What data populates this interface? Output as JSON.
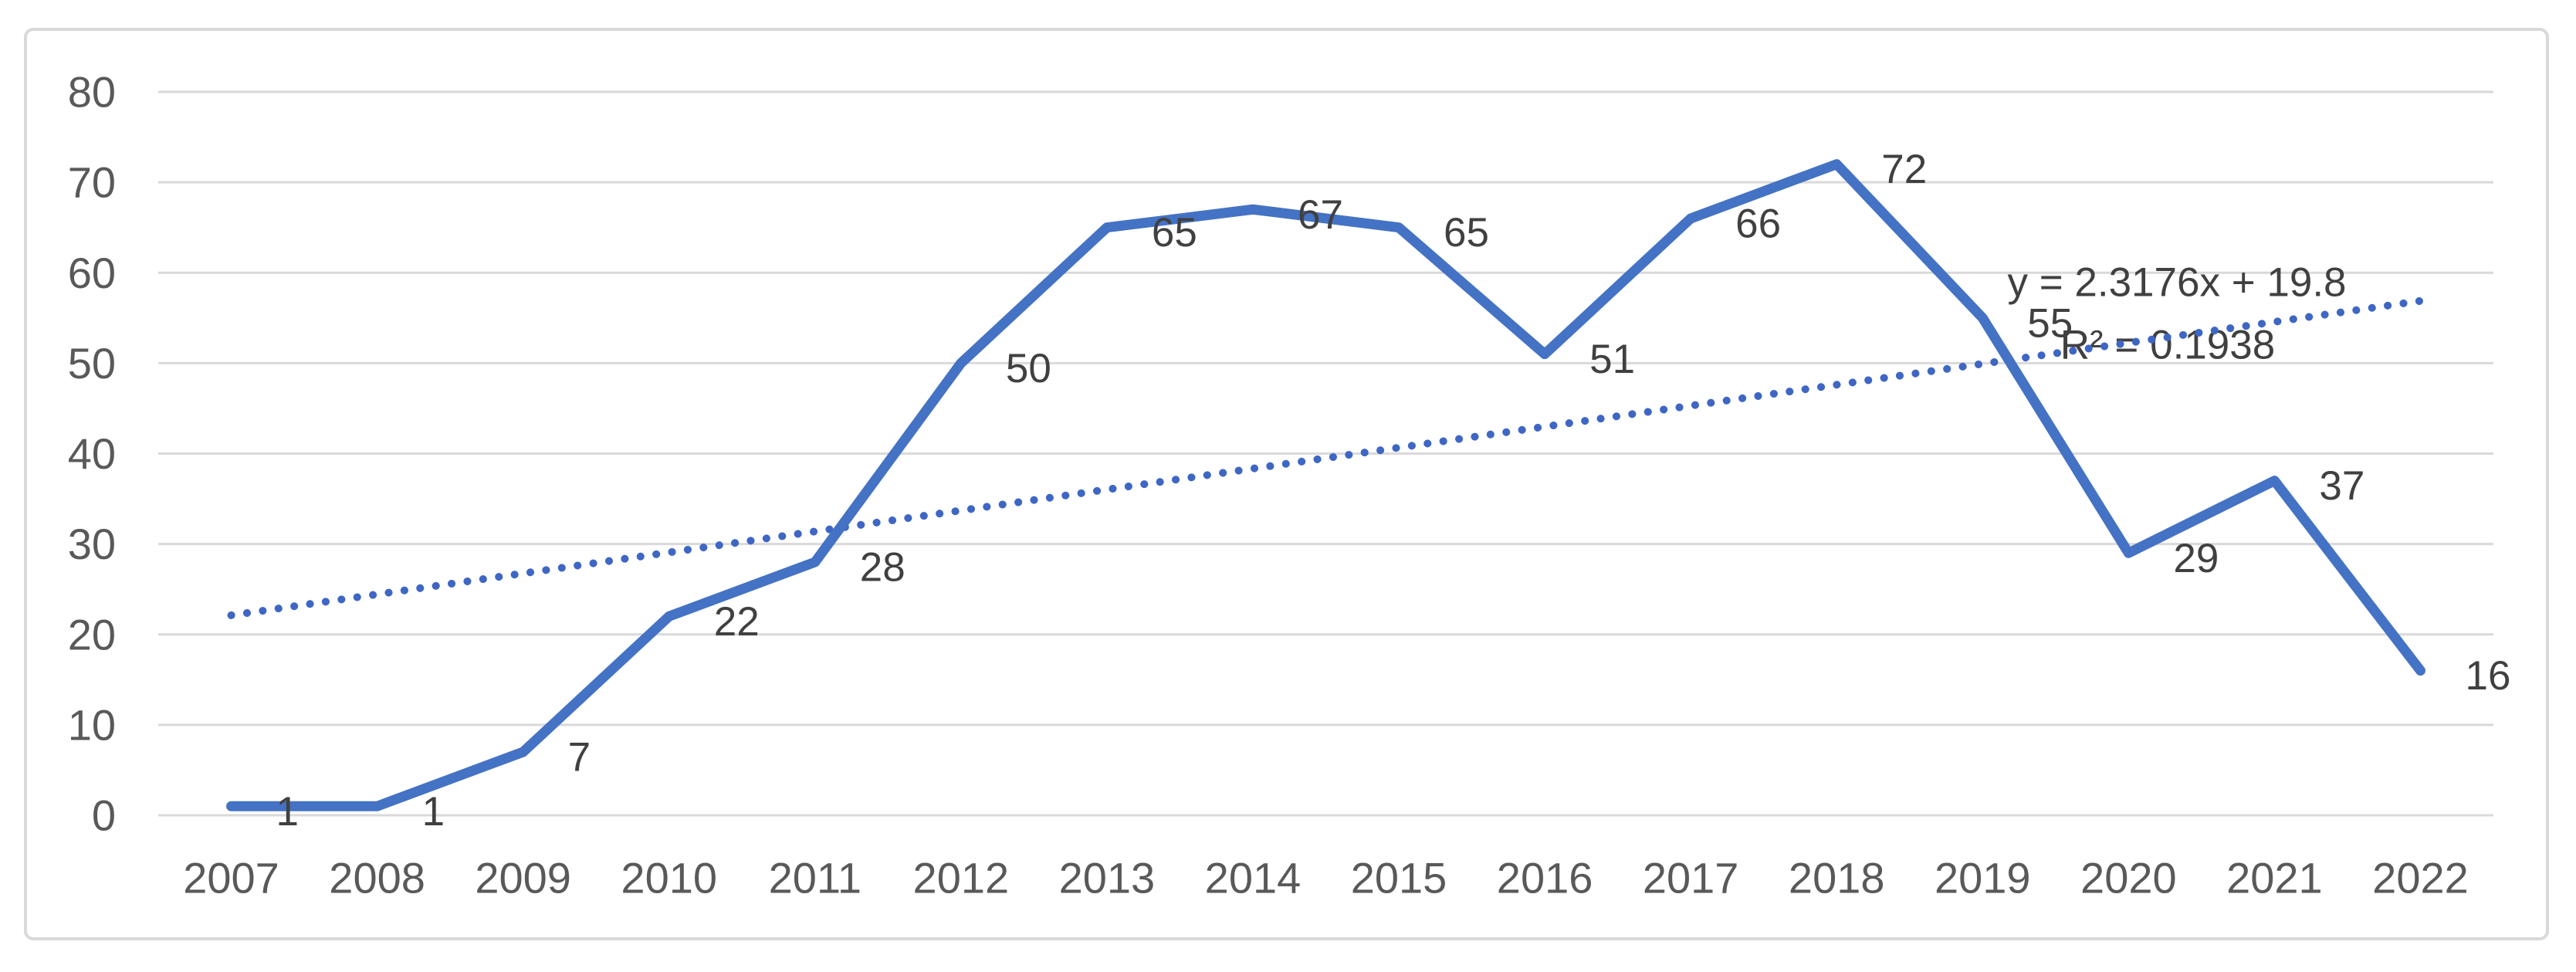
{
  "chart_data": {
    "type": "line",
    "title": "",
    "xlabel": "",
    "ylabel": "",
    "categories": [
      "2007",
      "2008",
      "2009",
      "2010",
      "2011",
      "2012",
      "2013",
      "2014",
      "2015",
      "2016",
      "2017",
      "2018",
      "2019",
      "2020",
      "2021",
      "2022"
    ],
    "series": [
      {
        "name": "values",
        "values": [
          1,
          1,
          7,
          22,
          28,
          50,
          65,
          67,
          65,
          51,
          66,
          72,
          55,
          29,
          37,
          16
        ]
      }
    ],
    "data_labels_visible": true,
    "ylim": [
      0,
      80
    ],
    "yticks": [
      0,
      10,
      20,
      30,
      40,
      50,
      60,
      70,
      80
    ],
    "grid": "horizontal",
    "legend": "none",
    "trendline": {
      "type": "linear",
      "slope": 2.3176,
      "intercept": 19.8,
      "equation_text": "y = 2.3176x + 19.8",
      "r_squared_text": "R² = 0.1938",
      "style": "dotted"
    },
    "colors": {
      "series_line": "#4472C4",
      "trendline": "#3E66C4",
      "gridline": "#D9D9D9",
      "chart_border": "#D9D9D9",
      "axis_tick_text": "#595959",
      "data_label_text": "#404040",
      "background": "#FFFFFF"
    }
  }
}
